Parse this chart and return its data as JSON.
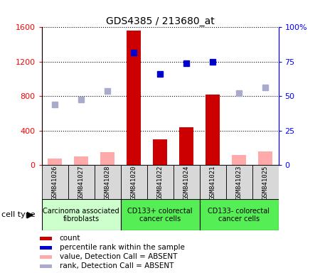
{
  "title": "GDS4385 / 213680_at",
  "samples": [
    "GSM841026",
    "GSM841027",
    "GSM841028",
    "GSM841020",
    "GSM841022",
    "GSM841024",
    "GSM841021",
    "GSM841023",
    "GSM841025"
  ],
  "count_values": [
    null,
    null,
    null,
    1560,
    300,
    440,
    820,
    null,
    null
  ],
  "count_absent_values": [
    80,
    100,
    150,
    null,
    null,
    null,
    null,
    120,
    160
  ],
  "percentile_values": [
    null,
    null,
    null,
    1310,
    1060,
    1185,
    1195,
    null,
    null
  ],
  "percentile_absent_values": [
    700,
    760,
    860,
    null,
    null,
    null,
    null,
    840,
    900
  ],
  "cell_types": [
    {
      "label": "Carcinoma associated\nfibroblasts",
      "start": 0,
      "end": 3,
      "color": "#ccffcc"
    },
    {
      "label": "CD133+ colorectal\ncancer cells",
      "start": 3,
      "end": 6,
      "color": "#55ee55"
    },
    {
      "label": "CD133- colorectal\ncancer cells",
      "start": 6,
      "end": 9,
      "color": "#55ee55"
    }
  ],
  "ylim_left": [
    0,
    1600
  ],
  "ylim_right": [
    0,
    100
  ],
  "yticks_left": [
    0,
    400,
    800,
    1200,
    1600
  ],
  "yticks_right": [
    0,
    25,
    50,
    75,
    100
  ],
  "bar_color_present": "#cc0000",
  "bar_color_absent": "#ffaaaa",
  "dot_color_present": "#0000cc",
  "dot_color_absent": "#aaaacc",
  "legend_items": [
    {
      "color": "#cc0000",
      "label": "count"
    },
    {
      "color": "#0000cc",
      "label": "percentile rank within the sample"
    },
    {
      "color": "#ffaaaa",
      "label": "value, Detection Call = ABSENT"
    },
    {
      "color": "#aaaacc",
      "label": "rank, Detection Call = ABSENT"
    }
  ]
}
